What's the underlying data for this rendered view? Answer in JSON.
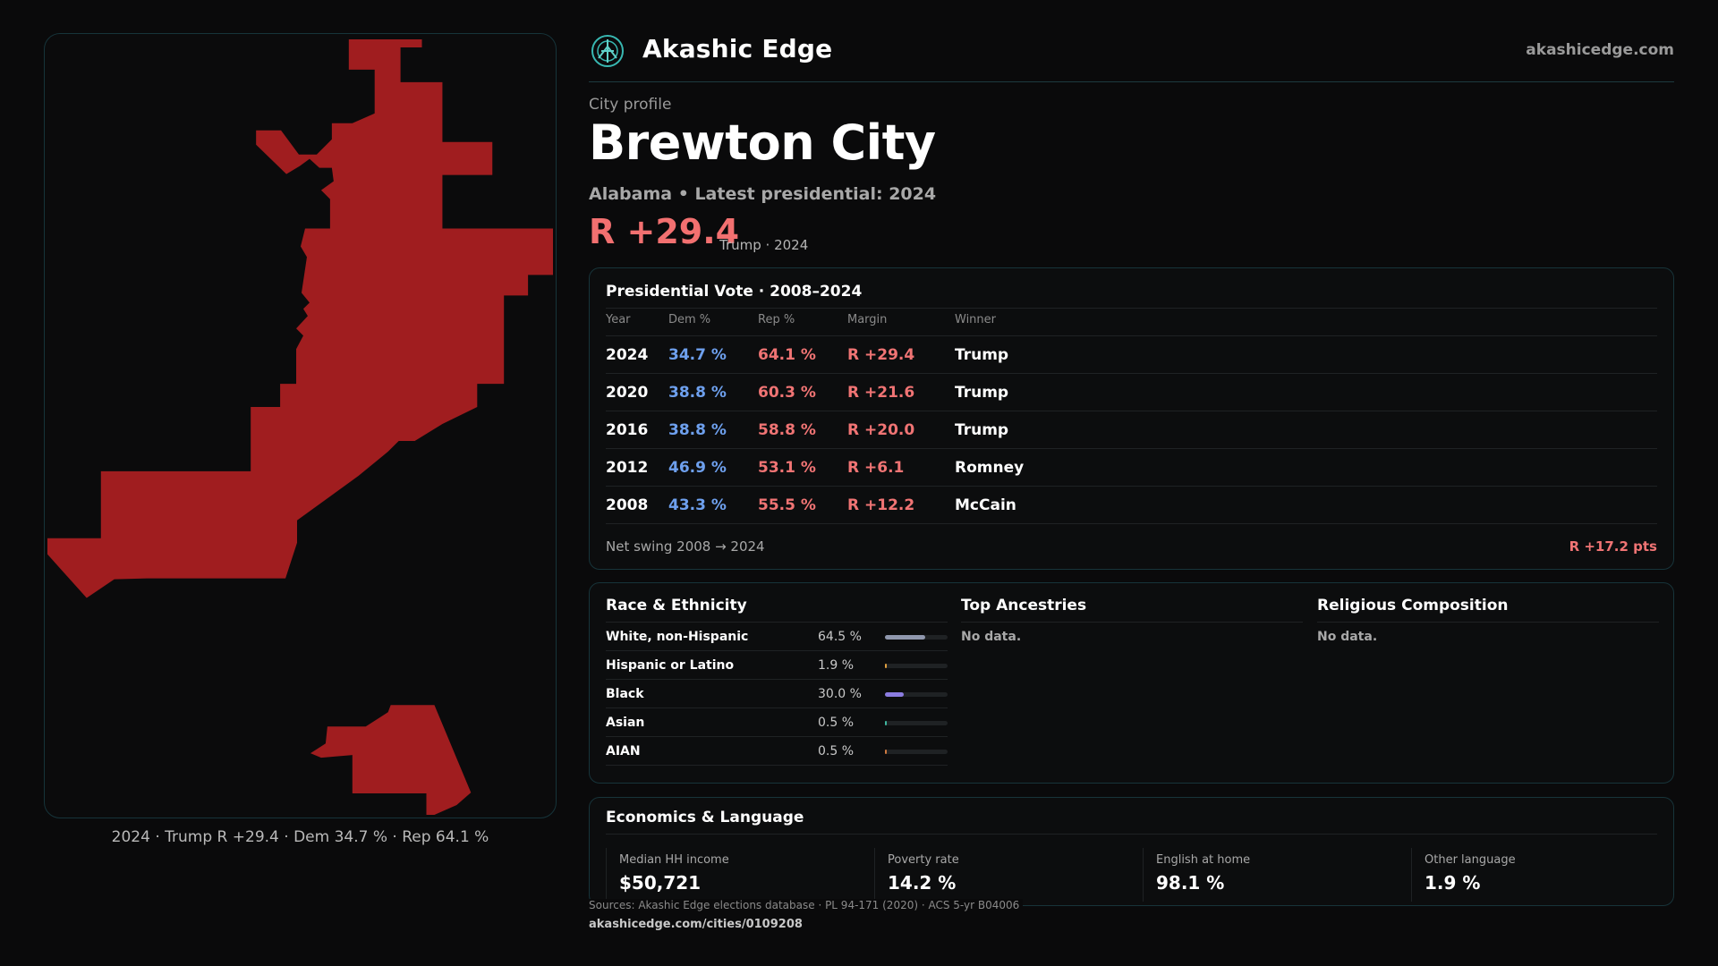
{
  "brand": {
    "name": "Akashic Edge",
    "url": "akashicedge.com"
  },
  "profile": {
    "eyebrow": "City profile",
    "city": "Brewton City",
    "subtitle": "Alabama • Latest presidential: 2024",
    "margin": "R +29.4",
    "margin_note": "Trump · 2024"
  },
  "map": {
    "caption": "2024 · Trump R +29.4 · Dem 34.7 % · Rep 64.1 %",
    "fill_color": "#a01d1f"
  },
  "vote": {
    "title": "Presidential Vote · 2008–2024",
    "headers": {
      "year": "Year",
      "dem": "Dem %",
      "rep": "Rep %",
      "margin": "Margin",
      "winner": "Winner"
    },
    "rows": [
      {
        "year": "2024",
        "dem": "34.7 %",
        "rep": "64.1 %",
        "margin": "R +29.4",
        "winner": "Trump"
      },
      {
        "year": "2020",
        "dem": "38.8 %",
        "rep": "60.3 %",
        "margin": "R +21.6",
        "winner": "Trump"
      },
      {
        "year": "2016",
        "dem": "38.8 %",
        "rep": "58.8 %",
        "margin": "R +20.0",
        "winner": "Trump"
      },
      {
        "year": "2012",
        "dem": "46.9 %",
        "rep": "53.1 %",
        "margin": "R +6.1",
        "winner": "Romney"
      },
      {
        "year": "2008",
        "dem": "43.3 %",
        "rep": "55.5 %",
        "margin": "R +12.2",
        "winner": "McCain"
      }
    ],
    "swing_label": "Net swing 2008 → 2024",
    "swing_value": "R +17.2 pts"
  },
  "demographics": {
    "race_title": "Race & Ethnicity",
    "race_rows": [
      {
        "name": "White, non-Hispanic",
        "pct": "64.5 %",
        "share": 0.645,
        "color": "#8f97ad"
      },
      {
        "name": "Hispanic or Latino",
        "pct": "1.9 %",
        "share": 0.019,
        "color": "#e0a040"
      },
      {
        "name": "Black",
        "pct": "30.0 %",
        "share": 0.3,
        "color": "#8b7ce0"
      },
      {
        "name": "Asian",
        "pct": "0.5 %",
        "share": 0.005,
        "color": "#3fb7a0"
      },
      {
        "name": "AIAN",
        "pct": "0.5 %",
        "share": 0.005,
        "color": "#d07a40"
      }
    ],
    "ancestry_title": "Top Ancestries",
    "ancestry_empty": "No data.",
    "religion_title": "Religious Composition",
    "religion_empty": "No data."
  },
  "economics": {
    "title": "Economics & Language",
    "stats": [
      {
        "label": "Median HH income",
        "value": "$50,721"
      },
      {
        "label": "Poverty rate",
        "value": "14.2 %"
      },
      {
        "label": "English at home",
        "value": "98.1 %"
      },
      {
        "label": "Other language",
        "value": "1.9 %"
      }
    ]
  },
  "footer": {
    "sources": "Sources: Akashic Edge elections database · PL 94-171 (2020) · ACS 5-yr B04006",
    "url": "akashicedge.com/cities/0109208"
  }
}
